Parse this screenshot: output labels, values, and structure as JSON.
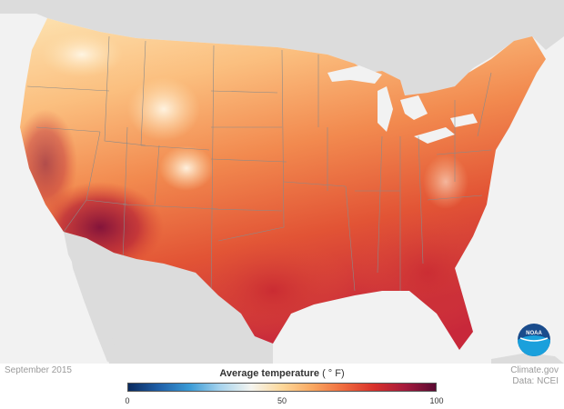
{
  "title": "Average temperature",
  "unit": "( ° F)",
  "date": "September 2015",
  "credit_line1": "Climate.gov",
  "credit_line2": "Data: NCEI",
  "logo_text": "NOAA",
  "legend": {
    "min_label": "0",
    "mid_label": "50",
    "max_label": "100",
    "min": 0,
    "max": 100,
    "colors": [
      "#0a2a5e",
      "#1f5fa8",
      "#3a9bd6",
      "#a8d4ee",
      "#f5f5f0",
      "#fdd89a",
      "#f9a760",
      "#ef6b3e",
      "#d8302b",
      "#a51a3c",
      "#5a0a32"
    ]
  },
  "colors": {
    "land_neighbor": "#dcdcdc",
    "water": "#f2f2f2",
    "border": "#8a8a8a"
  }
}
